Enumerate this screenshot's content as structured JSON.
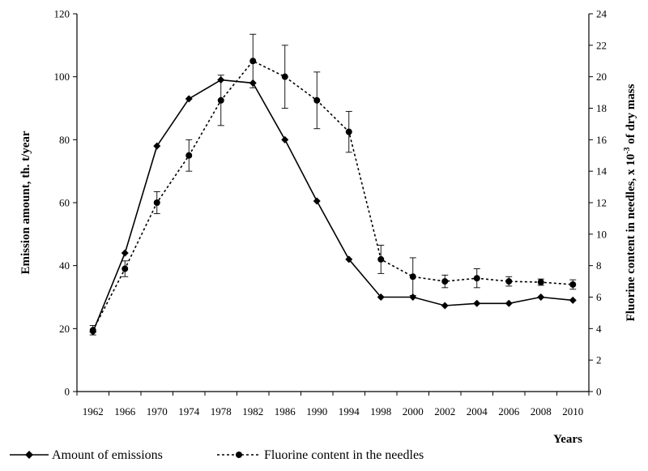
{
  "chart_data": {
    "type": "line",
    "categories": [
      "1962",
      "1966",
      "1970",
      "1974",
      "1978",
      "1982",
      "1986",
      "1990",
      "1994",
      "1998",
      "2000",
      "2002",
      "2004",
      "2006",
      "2008",
      "2010"
    ],
    "series": [
      {
        "name": "Amount of emissions",
        "axis": "left",
        "style": "solid",
        "marker": "diamond",
        "values": [
          19,
          44,
          78,
          93,
          99,
          98,
          80,
          60.5,
          42,
          30,
          30,
          27.3,
          28,
          28,
          30,
          29
        ]
      },
      {
        "name": "Fluorine content in the needles",
        "axis": "right",
        "style": "dashed",
        "marker": "circle",
        "values": [
          3.9,
          7.8,
          12,
          15,
          18.5,
          21,
          20,
          18.5,
          16.5,
          8.4,
          7.3,
          7.0,
          7.2,
          7.0,
          6.95,
          6.8
        ],
        "errors": [
          0.3,
          0.5,
          0.7,
          1.0,
          1.6,
          1.7,
          2.0,
          1.8,
          1.3,
          0.9,
          1.2,
          0.4,
          0.6,
          0.3,
          0.2,
          0.3
        ]
      }
    ],
    "ylabel": "Emission amount, th. t/year",
    "y2label": "Fluorine content in needles, x 10",
    "y2label_sup": "-3",
    "y2label_suffix": " of dry mass",
    "xlabel": "Years",
    "ylim": [
      0,
      120
    ],
    "y2lim": [
      0,
      24
    ],
    "yticks": [
      "0",
      "20",
      "40",
      "60",
      "80",
      "100",
      "120"
    ],
    "y2ticks": [
      "0",
      "2",
      "4",
      "6",
      "8",
      "10",
      "12",
      "14",
      "16",
      "18",
      "20",
      "22",
      "24"
    ],
    "legend_position": "bottom",
    "grid": false
  }
}
